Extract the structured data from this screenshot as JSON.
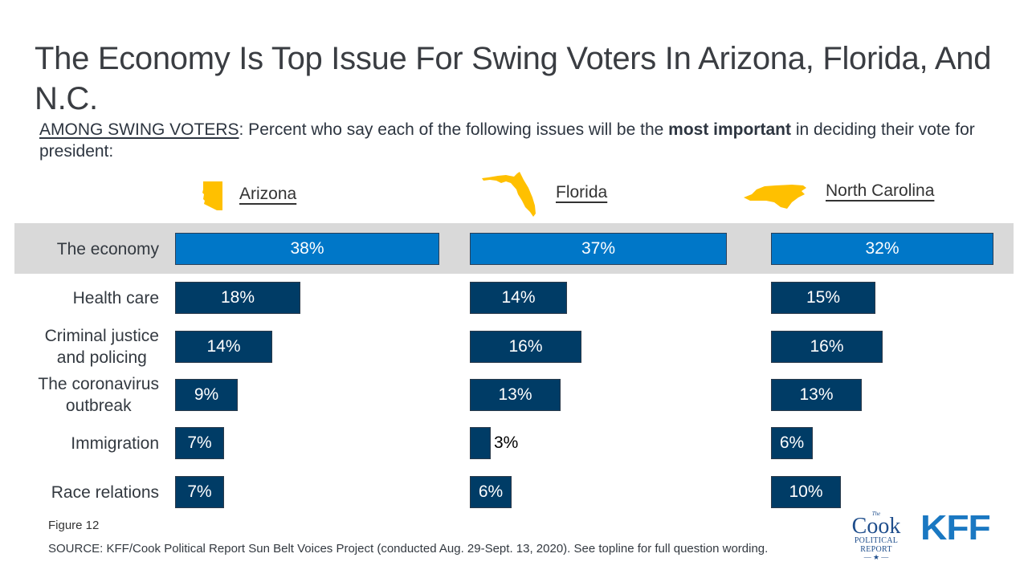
{
  "title": "The Economy Is Top Issue For Swing Voters In Arizona, Florida, And N.C.",
  "subtitle": {
    "underlined_prefix": "AMONG SWING VOTERS",
    "text_before_bold": ": Percent who say each of the following issues will be the ",
    "bold_text": "most important",
    "text_after_bold": " in deciding their vote for president:"
  },
  "colors": {
    "highlight_bar": "#0077c8",
    "bar": "#003c66",
    "highlight_band": "#d9d9d9",
    "state_icon": "#ffc000",
    "kff_logo": "#1a78c2",
    "cook_logo": "#1f4e8c"
  },
  "figure_label": "Figure 12",
  "source": "SOURCE: KFF/Cook Political Report Sun Belt Voices Project (conducted Aug. 29-Sept. 13, 2020). See topline for full question wording.",
  "logos": {
    "cook": {
      "the": "The",
      "name": "Cook",
      "line2": "POLITICAL",
      "line3": "REPORT",
      "star": "— ★ —"
    },
    "kff": "KFF"
  },
  "chart_data": {
    "type": "bar",
    "orientation": "horizontal",
    "title": "The Economy Is Top Issue For Swing Voters In Arizona, Florida, And N.C.",
    "xlabel": "",
    "ylabel": "",
    "value_format": "percent",
    "categories": [
      "The economy",
      "Health care",
      "Criminal justice and policing",
      "The coronavirus outbreak",
      "Immigration",
      "Race relations"
    ],
    "category_display": [
      [
        "The economy"
      ],
      [
        "Health care"
      ],
      [
        "Criminal justice",
        "and policing"
      ],
      [
        "The coronavirus",
        "outbreak"
      ],
      [
        "Immigration"
      ],
      [
        "Race relations"
      ]
    ],
    "highlighted_category": "The economy",
    "series": [
      {
        "name": "Arizona",
        "values": [
          38,
          18,
          14,
          9,
          7,
          7
        ],
        "labels": [
          "38%",
          "18%",
          "14%",
          "9%",
          "7%",
          "7%"
        ]
      },
      {
        "name": "Florida",
        "values": [
          37,
          14,
          16,
          13,
          3,
          6
        ],
        "labels": [
          "37%",
          "14%",
          "16%",
          "13%",
          "3%",
          "6%"
        ]
      },
      {
        "name": "North Carolina",
        "values": [
          32,
          15,
          16,
          13,
          6,
          10
        ],
        "labels": [
          "32%",
          "15%",
          "16%",
          "13%",
          "6%",
          "10%"
        ]
      }
    ],
    "xlim": [
      0,
      38
    ],
    "grid": false,
    "legend": "none"
  }
}
